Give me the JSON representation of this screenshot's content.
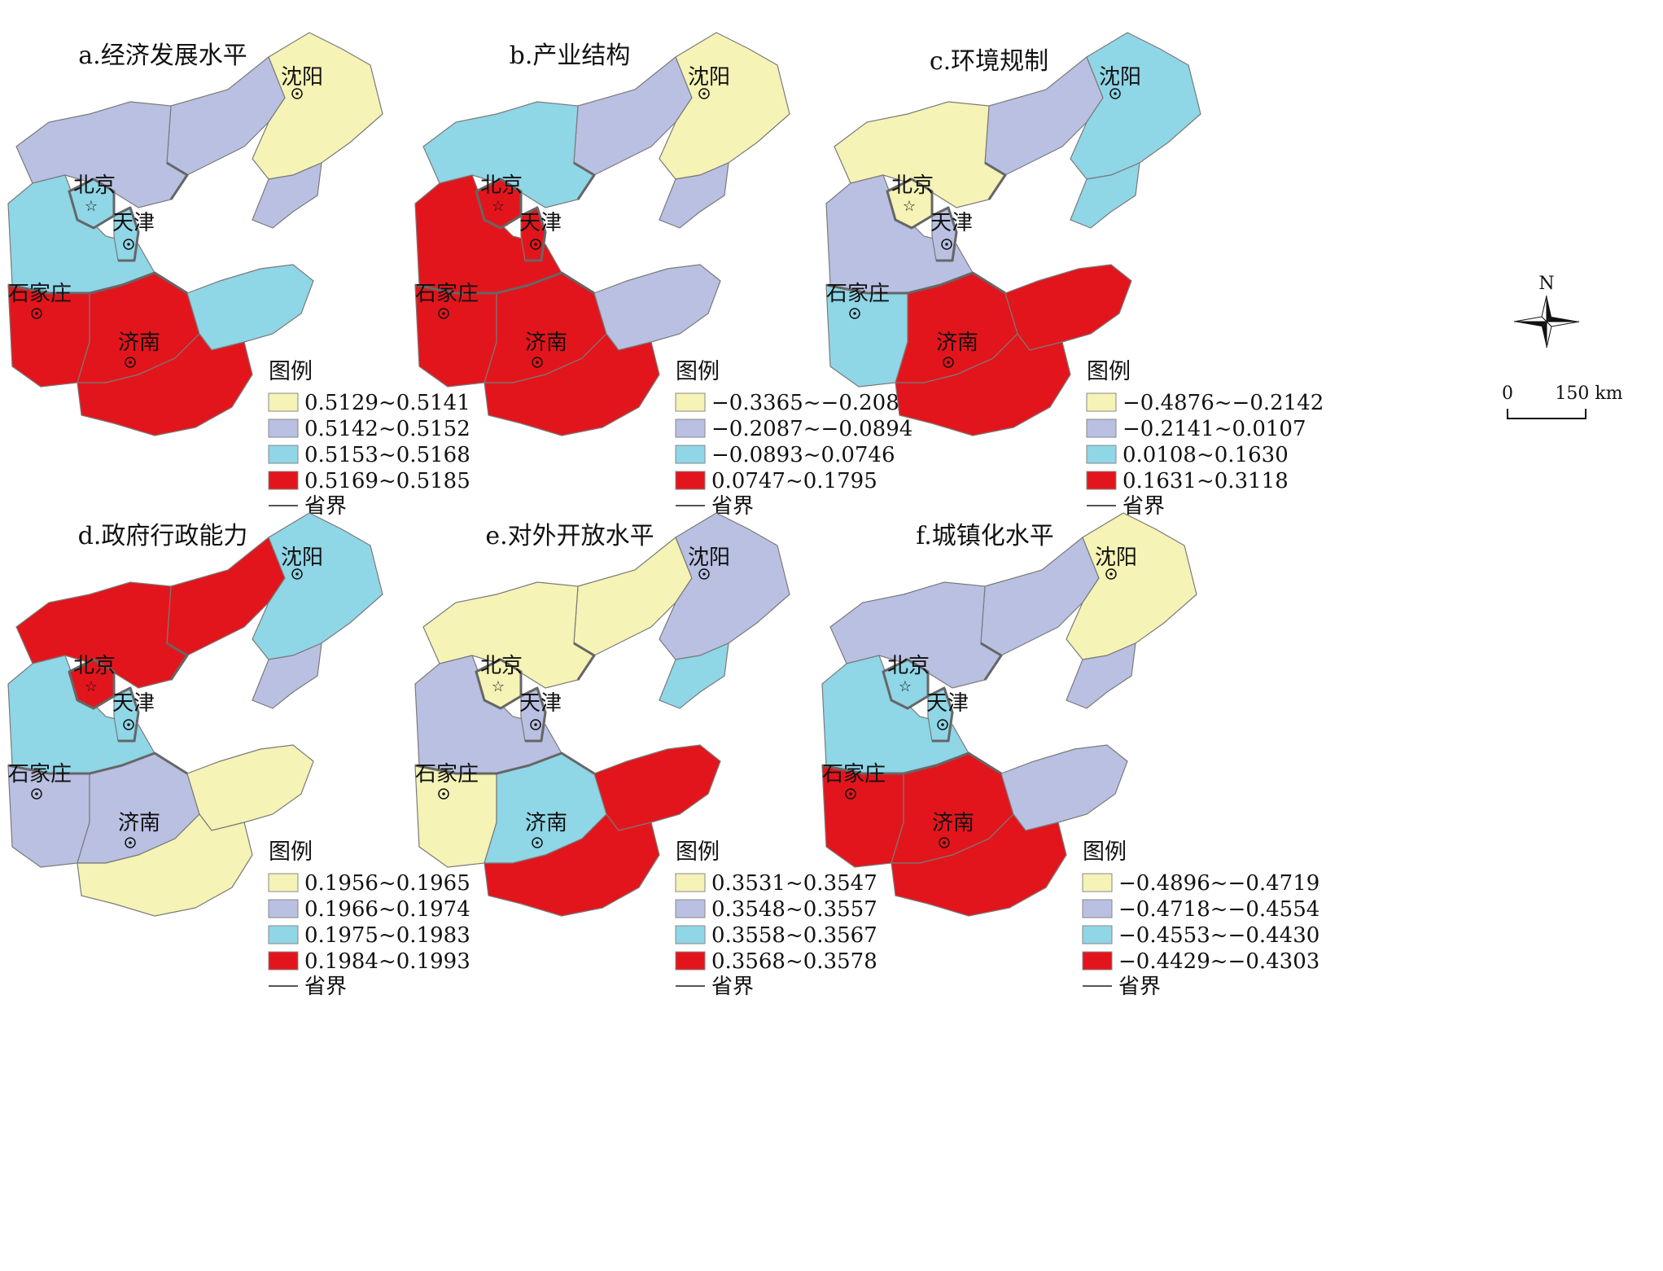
{
  "colors": {
    "yellow": "#f5f3b5",
    "lavender": "#b9c0e2",
    "cyan": "#8fd6e6",
    "red": "#e3151c"
  },
  "compass": {
    "north_label": "N"
  },
  "scale": {
    "zero": "0",
    "distance": "150 km"
  },
  "legend_boundary_label": "省界",
  "legend_title": "图例",
  "panels": [
    {
      "title": "a.经济发展水平",
      "cities": {
        "shenyang": "沈阳",
        "beijing": "北京",
        "tianjin": "天津",
        "shijiazhuang": "石家庄",
        "jinan": "济南"
      },
      "fills": {
        "liaoning_w": "lavender",
        "liaoning_e": "yellow",
        "liaoning_s": "lavender",
        "hebei_n": "lavender",
        "hebei_c": "cyan",
        "beijing": "cyan",
        "tianjin": "cyan",
        "hebei_s": "red",
        "shandong_w": "red",
        "shandong_e": "cyan",
        "shandong_s": "red"
      },
      "legend": [
        "0.5129~0.5141",
        "0.5142~0.5152",
        "0.5153~0.5168",
        "0.5169~0.5185"
      ]
    },
    {
      "title": "b.产业结构",
      "cities": {
        "shenyang": "沈阳",
        "beijing": "北京",
        "tianjin": "天津",
        "shijiazhuang": "石家庄",
        "jinan": "济南"
      },
      "fills": {
        "liaoning_w": "lavender",
        "liaoning_e": "yellow",
        "liaoning_s": "lavender",
        "hebei_n": "cyan",
        "hebei_c": "red",
        "beijing": "red",
        "tianjin": "red",
        "hebei_s": "red",
        "shandong_w": "red",
        "shandong_e": "lavender",
        "shandong_s": "red"
      },
      "legend": [
        "−0.3365~−0.2088",
        "−0.2087~−0.0894",
        "−0.0893~0.0746",
        "0.0747~0.1795"
      ]
    },
    {
      "title": "c.环境规制",
      "cities": {
        "shenyang": "沈阳",
        "beijing": "北京",
        "tianjin": "天津",
        "shijiazhuang": "石家庄",
        "jinan": "济南"
      },
      "fills": {
        "liaoning_w": "lavender",
        "liaoning_e": "cyan",
        "liaoning_s": "cyan",
        "hebei_n": "yellow",
        "hebei_c": "lavender",
        "beijing": "yellow",
        "tianjin": "lavender",
        "hebei_s": "cyan",
        "shandong_w": "red",
        "shandong_e": "red",
        "shandong_s": "red"
      },
      "legend": [
        "−0.4876~−0.2142",
        "−0.2141~0.0107",
        "0.0108~0.1630",
        "0.1631~0.3118"
      ]
    },
    {
      "title": "d.政府行政能力",
      "cities": {
        "shenyang": "沈阳",
        "beijing": "北京",
        "tianjin": "天津",
        "shijiazhuang": "石家庄",
        "jinan": "济南"
      },
      "fills": {
        "liaoning_w": "red",
        "liaoning_e": "cyan",
        "liaoning_s": "lavender",
        "hebei_n": "red",
        "hebei_c": "cyan",
        "beijing": "red",
        "tianjin": "cyan",
        "hebei_s": "lavender",
        "shandong_w": "lavender",
        "shandong_e": "yellow",
        "shandong_s": "yellow"
      },
      "legend": [
        "0.1956~0.1965",
        "0.1966~0.1974",
        "0.1975~0.1983",
        "0.1984~0.1993"
      ]
    },
    {
      "title": "e.对外开放水平",
      "cities": {
        "shenyang": "沈阳",
        "beijing": "北京",
        "tianjin": "天津",
        "shijiazhuang": "石家庄",
        "jinan": "济南"
      },
      "fills": {
        "liaoning_w": "yellow",
        "liaoning_e": "lavender",
        "liaoning_s": "cyan",
        "hebei_n": "yellow",
        "hebei_c": "lavender",
        "beijing": "yellow",
        "tianjin": "lavender",
        "hebei_s": "yellow",
        "shandong_w": "cyan",
        "shandong_e": "red",
        "shandong_s": "red"
      },
      "legend": [
        "0.3531~0.3547",
        "0.3548~0.3557",
        "0.3558~0.3567",
        "0.3568~0.3578"
      ]
    },
    {
      "title": "f.城镇化水平",
      "cities": {
        "shenyang": "沈阳",
        "beijing": "北京",
        "tianjin": "天津",
        "shijiazhuang": "石家庄",
        "jinan": "济南"
      },
      "fills": {
        "liaoning_w": "lavender",
        "liaoning_e": "yellow",
        "liaoning_s": "lavender",
        "hebei_n": "lavender",
        "hebei_c": "cyan",
        "beijing": "cyan",
        "tianjin": "cyan",
        "hebei_s": "red",
        "shandong_w": "red",
        "shandong_e": "lavender",
        "shandong_s": "red"
      },
      "legend": [
        "−0.4896~−0.4719",
        "−0.4718~−0.4554",
        "−0.4553~−0.4430",
        "−0.4429~−0.4303"
      ]
    }
  ]
}
